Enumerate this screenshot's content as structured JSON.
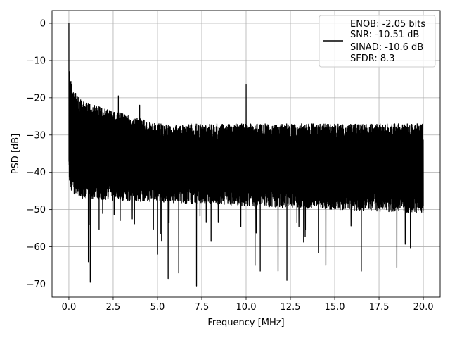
{
  "chart_data": {
    "type": "line",
    "title": "",
    "xlabel": "Frequency [MHz]",
    "ylabel": "PSD [dB]",
    "xlim": [
      -0.95,
      20.95
    ],
    "ylim": [
      -73.5,
      3.4
    ],
    "xticks": [
      0.0,
      2.5,
      5.0,
      7.5,
      10.0,
      12.5,
      15.0,
      17.5,
      20.0
    ],
    "xtick_labels": [
      "0.0",
      "2.5",
      "5.0",
      "7.5",
      "10.0",
      "12.5",
      "15.0",
      "17.5",
      "20.0"
    ],
    "yticks": [
      0,
      -10,
      -20,
      -30,
      -40,
      -50,
      -60,
      -70
    ],
    "ytick_labels": [
      "0",
      "−10",
      "−20",
      "−30",
      "−40",
      "−50",
      "−60",
      "−70"
    ],
    "grid": true,
    "legend_position": "top-right",
    "legend_lines": [
      "ENOB: -2.05 bits",
      "SNR: -10.51 dB",
      "SINAD: -10.6 dB",
      "SFDR: 8.3"
    ],
    "line_color": "#000000",
    "series": [
      {
        "x_range": [
          0,
          20
        ],
        "points": 4096,
        "noise_envelope_upper_db": [
          -20,
          -27
        ],
        "noise_envelope_lower_db": [
          -44,
          -48
        ],
        "noise_floor_min_db": -70.5,
        "peaks": [
          {
            "x": 0.0,
            "y": 0.0
          },
          {
            "x": 0.05,
            "y": -13
          },
          {
            "x": 10.0,
            "y": -16.5
          },
          {
            "x": 2.8,
            "y": -19.5
          },
          {
            "x": 4.0,
            "y": -22
          }
        ],
        "deep_dips": [
          {
            "x": 1.2,
            "y": -69.5
          },
          {
            "x": 1.1,
            "y": -64
          },
          {
            "x": 5.0,
            "y": -62
          },
          {
            "x": 5.6,
            "y": -68.5
          },
          {
            "x": 6.2,
            "y": -67
          },
          {
            "x": 7.2,
            "y": -70.5
          },
          {
            "x": 10.5,
            "y": -65
          },
          {
            "x": 10.8,
            "y": -66.5
          },
          {
            "x": 11.8,
            "y": -66.5
          },
          {
            "x": 12.3,
            "y": -69
          },
          {
            "x": 14.5,
            "y": -65
          },
          {
            "x": 16.5,
            "y": -66.5
          },
          {
            "x": 18.5,
            "y": -65.5
          }
        ]
      }
    ]
  }
}
